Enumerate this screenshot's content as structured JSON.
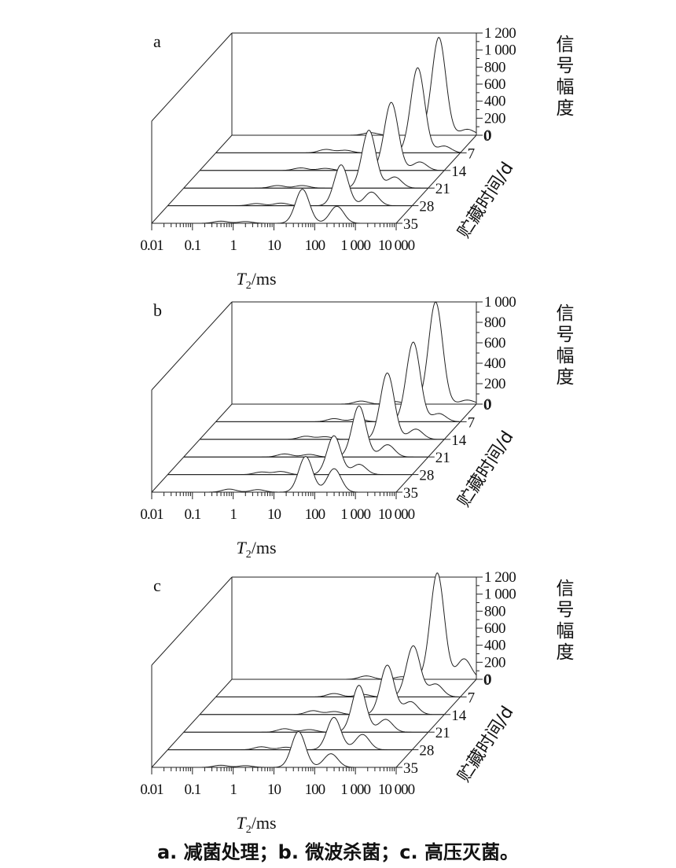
{
  "caption": "a. 减菌处理；b. 微波杀菌；c. 高压灭菌。",
  "chart_data": [
    {
      "type": "line",
      "panel_label": "a",
      "xlabel_prefix": "T",
      "xlabel_sub": "2",
      "xlabel_suffix": "/ms",
      "x_scale": "log",
      "xlim": [
        0.01,
        10000
      ],
      "x_ticks": [
        {
          "value": 0.01,
          "label": "0.01"
        },
        {
          "value": 0.1,
          "label": "0.1"
        },
        {
          "value": 1,
          "label": "1"
        },
        {
          "value": 10,
          "label": "10"
        },
        {
          "value": 100,
          "label": "100"
        },
        {
          "value": 1000,
          "label": "1 000"
        },
        {
          "value": 10000,
          "label": "10 000"
        }
      ],
      "ylabel": "信号幅度",
      "ylim": [
        0,
        1200
      ],
      "y_ticks": [
        {
          "value": 0,
          "label": "0"
        },
        {
          "value": 200,
          "label": "200"
        },
        {
          "value": 400,
          "label": "400"
        },
        {
          "value": 600,
          "label": "600"
        },
        {
          "value": 800,
          "label": "800"
        },
        {
          "value": 1000,
          "label": "1 000"
        },
        {
          "value": 1200,
          "label": "1 200"
        }
      ],
      "zlabel": "贮藏时间/d",
      "series": [
        {
          "name": "0",
          "peaks": [
            {
              "t2": 1200,
              "amp": 1150
            },
            {
              "t2": 6000,
              "amp": 70
            },
            {
              "t2": 25,
              "amp": 30
            }
          ]
        },
        {
          "name": "7",
          "peaks": [
            {
              "t2": 900,
              "amp": 1000
            },
            {
              "t2": 4000,
              "amp": 80
            },
            {
              "t2": 5,
              "amp": 40
            },
            {
              "t2": 15,
              "amp": 30
            }
          ]
        },
        {
          "name": "14",
          "peaks": [
            {
              "t2": 500,
              "amp": 800
            },
            {
              "t2": 2500,
              "amp": 100
            },
            {
              "t2": 3,
              "amp": 30
            },
            {
              "t2": 12,
              "amp": 25
            }
          ]
        },
        {
          "name": "21",
          "peaks": [
            {
              "t2": 350,
              "amp": 680
            },
            {
              "t2": 1500,
              "amp": 130
            },
            {
              "t2": 2,
              "amp": 30
            },
            {
              "t2": 8,
              "amp": 30
            }
          ]
        },
        {
          "name": "28",
          "peaks": [
            {
              "t2": 180,
              "amp": 480
            },
            {
              "t2": 1000,
              "amp": 160
            },
            {
              "t2": 1.5,
              "amp": 25
            },
            {
              "t2": 6,
              "amp": 30
            }
          ]
        },
        {
          "name": "35",
          "peaks": [
            {
              "t2": 50,
              "amp": 400
            },
            {
              "t2": 350,
              "amp": 200
            },
            {
              "t2": 0.5,
              "amp": 25
            },
            {
              "t2": 2,
              "amp": 20
            }
          ]
        }
      ]
    },
    {
      "type": "line",
      "panel_label": "b",
      "xlabel_prefix": "T",
      "xlabel_sub": "2",
      "xlabel_suffix": "/ms",
      "x_scale": "log",
      "xlim": [
        0.01,
        10000
      ],
      "x_ticks": [
        {
          "value": 0.01,
          "label": "0.01"
        },
        {
          "value": 0.1,
          "label": "0.1"
        },
        {
          "value": 1,
          "label": "1"
        },
        {
          "value": 10,
          "label": "10"
        },
        {
          "value": 100,
          "label": "100"
        },
        {
          "value": 1000,
          "label": "1 000"
        },
        {
          "value": 10000,
          "label": "10 000"
        }
      ],
      "ylabel": "信号幅度",
      "ylim": [
        0,
        1000
      ],
      "y_ticks": [
        {
          "value": 0,
          "label": "0"
        },
        {
          "value": 200,
          "label": "200"
        },
        {
          "value": 400,
          "label": "400"
        },
        {
          "value": 600,
          "label": "600"
        },
        {
          "value": 800,
          "label": "800"
        },
        {
          "value": 1000,
          "label": "1 000"
        }
      ],
      "zlabel": "贮藏时间/d",
      "series": [
        {
          "name": "0",
          "peaks": [
            {
              "t2": 1000,
              "amp": 1000
            },
            {
              "t2": 6000,
              "amp": 40
            },
            {
              "t2": 15,
              "amp": 30
            },
            {
              "t2": 100,
              "amp": 25
            }
          ]
        },
        {
          "name": "7",
          "peaks": [
            {
              "t2": 700,
              "amp": 780
            },
            {
              "t2": 3000,
              "amp": 80
            },
            {
              "t2": 8,
              "amp": 30
            },
            {
              "t2": 30,
              "amp": 30
            }
          ]
        },
        {
          "name": "14",
          "peaks": [
            {
              "t2": 400,
              "amp": 650
            },
            {
              "t2": 2000,
              "amp": 100
            },
            {
              "t2": 4,
              "amp": 30
            },
            {
              "t2": 12,
              "amp": 25
            }
          ]
        },
        {
          "name": "21",
          "peaks": [
            {
              "t2": 200,
              "amp": 500
            },
            {
              "t2": 1000,
              "amp": 120
            },
            {
              "t2": 3,
              "amp": 30
            },
            {
              "t2": 12,
              "amp": 25
            }
          ]
        },
        {
          "name": "28",
          "peaks": [
            {
              "t2": 120,
              "amp": 380
            },
            {
              "t2": 500,
              "amp": 100
            },
            {
              "t2": 2,
              "amp": 25
            },
            {
              "t2": 6,
              "amp": 30
            }
          ]
        },
        {
          "name": "35",
          "peaks": [
            {
              "t2": 60,
              "amp": 350
            },
            {
              "t2": 300,
              "amp": 230
            },
            {
              "t2": 0.8,
              "amp": 30
            },
            {
              "t2": 4,
              "amp": 25
            }
          ]
        }
      ]
    },
    {
      "type": "line",
      "panel_label": "c",
      "xlabel_prefix": "T",
      "xlabel_sub": "2",
      "xlabel_suffix": "/ms",
      "x_scale": "log",
      "xlim": [
        0.01,
        10000
      ],
      "x_ticks": [
        {
          "value": 0.01,
          "label": "0.01"
        },
        {
          "value": 0.1,
          "label": "0.1"
        },
        {
          "value": 1,
          "label": "1"
        },
        {
          "value": 10,
          "label": "10"
        },
        {
          "value": 100,
          "label": "100"
        },
        {
          "value": 1000,
          "label": "1 000"
        },
        {
          "value": 10000,
          "label": "10 000"
        }
      ],
      "ylabel": "信号幅度",
      "ylim": [
        0,
        1200
      ],
      "y_ticks": [
        {
          "value": 0,
          "label": "0"
        },
        {
          "value": 200,
          "label": "200"
        },
        {
          "value": 400,
          "label": "400"
        },
        {
          "value": 600,
          "label": "600"
        },
        {
          "value": 800,
          "label": "800"
        },
        {
          "value": 1000,
          "label": "1 000"
        },
        {
          "value": 1200,
          "label": "1 200"
        }
      ],
      "zlabel": "贮藏时间/d",
      "series": [
        {
          "name": "0",
          "peaks": [
            {
              "t2": 1100,
              "amp": 1250
            },
            {
              "t2": 5000,
              "amp": 240
            },
            {
              "t2": 20,
              "amp": 40
            },
            {
              "t2": 150,
              "amp": 30
            }
          ]
        },
        {
          "name": "7",
          "peaks": [
            {
              "t2": 700,
              "amp": 600
            },
            {
              "t2": 2500,
              "amp": 150
            },
            {
              "t2": 8,
              "amp": 40
            },
            {
              "t2": 40,
              "amp": 30
            }
          ]
        },
        {
          "name": "14",
          "peaks": [
            {
              "t2": 400,
              "amp": 580
            },
            {
              "t2": 1500,
              "amp": 150
            },
            {
              "t2": 6,
              "amp": 45
            },
            {
              "t2": 20,
              "amp": 35
            }
          ]
        },
        {
          "name": "21",
          "peaks": [
            {
              "t2": 200,
              "amp": 550
            },
            {
              "t2": 900,
              "amp": 150
            },
            {
              "t2": 3,
              "amp": 40
            },
            {
              "t2": 12,
              "amp": 30
            }
          ]
        },
        {
          "name": "28",
          "peaks": [
            {
              "t2": 120,
              "amp": 380
            },
            {
              "t2": 600,
              "amp": 180
            },
            {
              "t2": 2,
              "amp": 35
            },
            {
              "t2": 8,
              "amp": 30
            }
          ]
        },
        {
          "name": "35",
          "peaks": [
            {
              "t2": 40,
              "amp": 420
            },
            {
              "t2": 250,
              "amp": 160
            },
            {
              "t2": 0.5,
              "amp": 25
            },
            {
              "t2": 2,
              "amp": 20
            }
          ]
        }
      ]
    }
  ]
}
